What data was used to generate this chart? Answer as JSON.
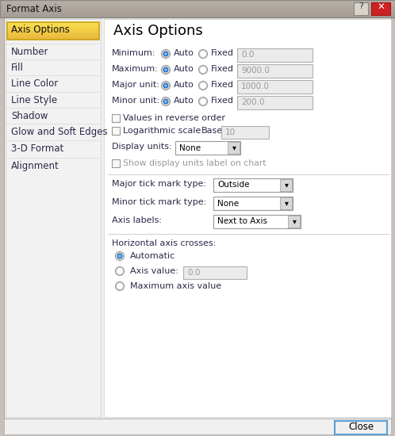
{
  "title_bar_text": "Format Axis",
  "left_panel_selected_text": "Axis Options",
  "left_panel_items": [
    "Axis Options",
    "Number",
    "Fill",
    "Line Color",
    "Line Style",
    "Shadow",
    "Glow and Soft Edges",
    "3-D Format",
    "Alignment"
  ],
  "right_panel_title": "Axis Options",
  "rows": [
    {
      "label": "Minimum:",
      "value": "0.0"
    },
    {
      "label": "Maximum:",
      "value": "9000.0"
    },
    {
      "label": "Major unit:",
      "value": "1000.0"
    },
    {
      "label": "Minor unit:",
      "value": "200.0"
    }
  ],
  "checkbox_items": [
    {
      "text": "Values in reverse order",
      "checked": false
    },
    {
      "text": "Logarithmic scale",
      "checked": false
    }
  ],
  "log_base_label": "Base:",
  "log_base_value": "10",
  "display_units_label": "Display units:",
  "display_units_value": "None",
  "show_label_text": "Show display units label on chart",
  "major_tick_label": "Major tick mark type:",
  "major_tick_value": "Outside",
  "minor_tick_label": "Minor tick mark type:",
  "minor_tick_value": "None",
  "axis_labels_label": "Axis labels:",
  "axis_labels_value": "Next to Axis",
  "h_axis_crosses_label": "Horizontal axis crosses:",
  "h_radio_items": [
    {
      "text": "Automatic",
      "selected": true
    },
    {
      "text": "Axis value:",
      "selected": false,
      "field": "0.0"
    },
    {
      "text": "Maximum axis value",
      "selected": false
    }
  ],
  "close_btn": "Close",
  "outer_bg": "#c8c0b8",
  "dialog_bg": "#f0f0f0",
  "left_bg": "#f2f2f2",
  "selected_bg_top": "#fae96a",
  "selected_bg_bot": "#e8b820",
  "text_field_bg": "#ebebeb",
  "text_color": "#1a1a2e",
  "label_color": "#2a2a4a",
  "disabled_color": "#999999",
  "separator_color": "#d0d0d0",
  "radio_fill": "#2060b0",
  "titlebar_bg": "#b0a898",
  "close_btn_bg": "#cc2222"
}
